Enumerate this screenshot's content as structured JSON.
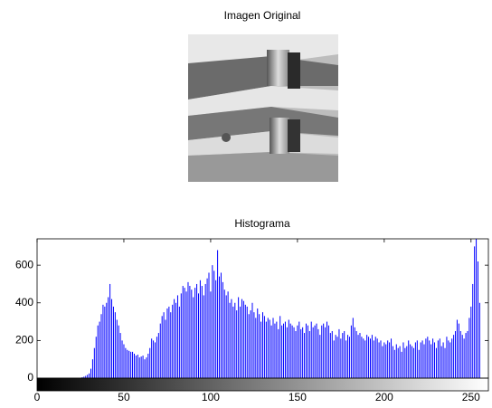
{
  "image_title": "Imagen Original",
  "chart_data": {
    "type": "bar",
    "title": "Histograma",
    "color": "#0000ff",
    "xlim": [
      0,
      260
    ],
    "ylim": [
      0,
      740
    ],
    "xticks": [
      0,
      50,
      100,
      150,
      200,
      250
    ],
    "yticks": [
      0,
      200,
      400,
      600
    ],
    "x": [
      0,
      1,
      2,
      3,
      4,
      5,
      6,
      7,
      8,
      9,
      10,
      11,
      12,
      13,
      14,
      15,
      16,
      17,
      18,
      19,
      20,
      21,
      22,
      23,
      24,
      25,
      26,
      27,
      28,
      29,
      30,
      31,
      32,
      33,
      34,
      35,
      36,
      37,
      38,
      39,
      40,
      41,
      42,
      43,
      44,
      45,
      46,
      47,
      48,
      49,
      50,
      51,
      52,
      53,
      54,
      55,
      56,
      57,
      58,
      59,
      60,
      61,
      62,
      63,
      64,
      65,
      66,
      67,
      68,
      69,
      70,
      71,
      72,
      73,
      74,
      75,
      76,
      77,
      78,
      79,
      80,
      81,
      82,
      83,
      84,
      85,
      86,
      87,
      88,
      89,
      90,
      91,
      92,
      93,
      94,
      95,
      96,
      97,
      98,
      99,
      100,
      101,
      102,
      103,
      104,
      105,
      106,
      107,
      108,
      109,
      110,
      111,
      112,
      113,
      114,
      115,
      116,
      117,
      118,
      119,
      120,
      121,
      122,
      123,
      124,
      125,
      126,
      127,
      128,
      129,
      130,
      131,
      132,
      133,
      134,
      135,
      136,
      137,
      138,
      139,
      140,
      141,
      142,
      143,
      144,
      145,
      146,
      147,
      148,
      149,
      150,
      151,
      152,
      153,
      154,
      155,
      156,
      157,
      158,
      159,
      160,
      161,
      162,
      163,
      164,
      165,
      166,
      167,
      168,
      169,
      170,
      171,
      172,
      173,
      174,
      175,
      176,
      177,
      178,
      179,
      180,
      181,
      182,
      183,
      184,
      185,
      186,
      187,
      188,
      189,
      190,
      191,
      192,
      193,
      194,
      195,
      196,
      197,
      198,
      199,
      200,
      201,
      202,
      203,
      204,
      205,
      206,
      207,
      208,
      209,
      210,
      211,
      212,
      213,
      214,
      215,
      216,
      217,
      218,
      219,
      220,
      221,
      222,
      223,
      224,
      225,
      226,
      227,
      228,
      229,
      230,
      231,
      232,
      233,
      234,
      235,
      236,
      237,
      238,
      239,
      240,
      241,
      242,
      243,
      244,
      245,
      246,
      247,
      248,
      249,
      250,
      251,
      252,
      253,
      254,
      255
    ],
    "values": [
      0,
      0,
      0,
      0,
      0,
      0,
      0,
      0,
      0,
      0,
      0,
      0,
      0,
      0,
      0,
      0,
      0,
      0,
      0,
      0,
      0,
      0,
      0,
      0,
      0,
      2,
      5,
      8,
      12,
      18,
      25,
      50,
      100,
      160,
      220,
      280,
      300,
      340,
      390,
      380,
      400,
      430,
      500,
      420,
      380,
      350,
      310,
      280,
      240,
      200,
      180,
      160,
      150,
      145,
      140,
      140,
      130,
      120,
      125,
      110,
      115,
      120,
      100,
      110,
      130,
      160,
      210,
      200,
      190,
      220,
      240,
      290,
      330,
      350,
      310,
      370,
      380,
      350,
      390,
      420,
      400,
      440,
      380,
      450,
      490,
      480,
      460,
      510,
      490,
      470,
      430,
      480,
      500,
      450,
      520,
      490,
      440,
      500,
      530,
      560,
      460,
      600,
      570,
      520,
      680,
      540,
      560,
      510,
      470,
      440,
      460,
      400,
      420,
      380,
      400,
      360,
      430,
      380,
      420,
      410,
      390,
      380,
      340,
      360,
      400,
      350,
      320,
      370,
      340,
      300,
      350,
      330,
      300,
      320,
      310,
      280,
      320,
      290,
      300,
      260,
      330,
      280,
      290,
      300,
      270,
      310,
      290,
      280,
      270,
      250,
      280,
      300,
      260,
      270,
      240,
      290,
      280,
      250,
      300,
      270,
      280,
      290,
      260,
      230,
      280,
      290,
      270,
      300,
      280,
      240,
      250,
      200,
      230,
      220,
      260,
      210,
      240,
      250,
      200,
      230,
      220,
      280,
      320,
      270,
      250,
      230,
      240,
      220,
      210,
      200,
      230,
      220,
      210,
      230,
      200,
      220,
      210,
      190,
      200,
      170,
      190,
      180,
      200,
      190,
      210,
      170,
      150,
      180,
      160,
      170,
      140,
      190,
      160,
      170,
      200,
      180,
      170,
      160,
      190,
      200,
      150,
      190,
      200,
      180,
      210,
      220,
      200,
      180,
      210,
      190,
      160,
      200,
      210,
      170,
      190,
      160,
      220,
      200,
      190,
      210,
      230,
      250,
      310,
      290,
      250,
      230,
      210,
      240,
      250,
      320,
      380,
      500,
      700,
      740,
      620,
      400
    ]
  }
}
